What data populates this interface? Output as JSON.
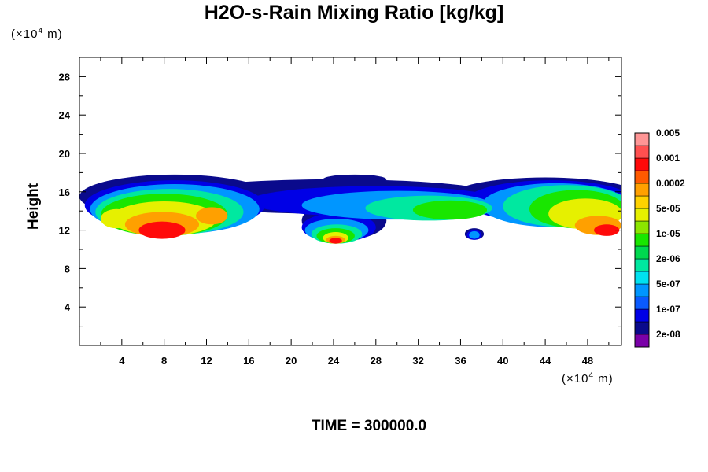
{
  "title": "H2O-s-Rain Mixing Ratio [kg/kg]",
  "y_unit": {
    "prefix": "(×10",
    "exp": "4",
    "suffix": " m)"
  },
  "x_unit": {
    "prefix": "(×10",
    "exp": "4",
    "suffix": " m)"
  },
  "time_label": "TIME = 300000.0",
  "chart_data": {
    "type": "heatmap",
    "title": "H2O-s-Rain Mixing Ratio [kg/kg]",
    "ylabel": "Height",
    "xlabel": "",
    "x_unit": "×10^4 m",
    "y_unit": "×10^4 m",
    "xlim": [
      0,
      51.2
    ],
    "ylim": [
      0,
      30
    ],
    "x_ticks": [
      4,
      8,
      12,
      16,
      20,
      24,
      28,
      32,
      36,
      40,
      44,
      48
    ],
    "y_ticks": [
      4,
      8,
      12,
      16,
      20,
      24,
      28
    ],
    "colorbar": {
      "levels": [
        "2e-08",
        "1e-07",
        "5e-07",
        "2e-06",
        "1e-05",
        "5e-05",
        "0.0002",
        "0.001",
        "0.005"
      ],
      "colors": [
        "#7a00a8",
        "#0a0a8c",
        "#0000e6",
        "#0a5aff",
        "#0096ff",
        "#00e1f0",
        "#00e8a0",
        "#00d94f",
        "#19e600",
        "#8ce600",
        "#e6f000",
        "#ffd200",
        "#ffa000",
        "#ff5a00",
        "#ff0a0a",
        "#ff5050",
        "#ff9696"
      ]
    },
    "field_layers": [
      {
        "level": 1,
        "blobs": [
          [
            9,
            15.5,
            9,
            2.3
          ],
          [
            24,
            15.5,
            16,
            1.8
          ],
          [
            44,
            15.5,
            9,
            2.0
          ],
          [
            25,
            13.0,
            4,
            2.0
          ],
          [
            37.3,
            11.6,
            0.9,
            0.6
          ],
          [
            26,
            17.3,
            3,
            0.5
          ]
        ]
      },
      {
        "level": 2,
        "blobs": [
          [
            9,
            14.6,
            8.5,
            2.6
          ],
          [
            28,
            15.0,
            12,
            1.6
          ],
          [
            44.5,
            15.0,
            8,
            2.2
          ],
          [
            24.5,
            12.3,
            3.5,
            1.5
          ],
          [
            37.3,
            11.5,
            0.7,
            0.5
          ]
        ]
      },
      {
        "level": 4,
        "blobs": [
          [
            9,
            14.2,
            8,
            2.6
          ],
          [
            30,
            14.6,
            9,
            1.5
          ],
          [
            45,
            14.6,
            7,
            2.3
          ],
          [
            24.3,
            12.0,
            3,
            1.2
          ],
          [
            37.3,
            11.5,
            0.5,
            0.4
          ]
        ]
      },
      {
        "level": 6,
        "blobs": [
          [
            8.5,
            13.9,
            7,
            2.4
          ],
          [
            33,
            14.3,
            6,
            1.3
          ],
          [
            46,
            14.5,
            6,
            2.2
          ],
          [
            24.3,
            11.6,
            2.4,
            1.0
          ]
        ]
      },
      {
        "level": 8,
        "blobs": [
          [
            8,
            13.6,
            6,
            2.2
          ],
          [
            35,
            14.1,
            3.5,
            1.0
          ],
          [
            47,
            14.2,
            4.5,
            2.0
          ],
          [
            24.2,
            11.4,
            1.8,
            0.8
          ]
        ]
      },
      {
        "level": 10,
        "blobs": [
          [
            8,
            13.2,
            5,
            1.8
          ],
          [
            47.8,
            13.7,
            3.5,
            1.6
          ],
          [
            24.2,
            11.2,
            1.2,
            0.6
          ],
          [
            3.5,
            13.2,
            1.5,
            1.0
          ]
        ]
      },
      {
        "level": 12,
        "blobs": [
          [
            7.8,
            12.6,
            3.5,
            1.3
          ],
          [
            49,
            12.5,
            2.2,
            1.0
          ],
          [
            24.2,
            11.0,
            0.9,
            0.4
          ],
          [
            12.5,
            13.5,
            1.5,
            0.9
          ]
        ]
      },
      {
        "level": 14,
        "blobs": [
          [
            7.8,
            12.0,
            2.2,
            0.9
          ],
          [
            49.8,
            12.0,
            1.2,
            0.6
          ],
          [
            24.2,
            10.9,
            0.6,
            0.3
          ]
        ]
      }
    ]
  }
}
